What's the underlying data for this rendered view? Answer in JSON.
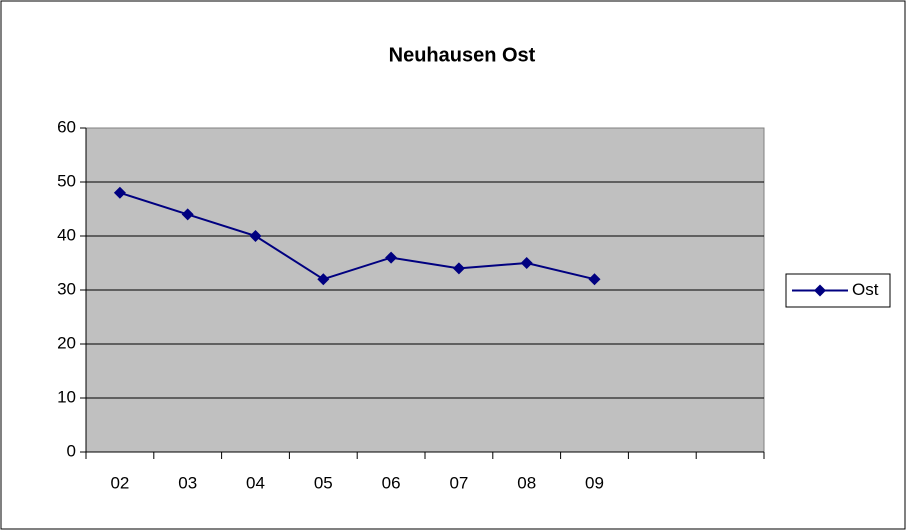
{
  "chart_data": {
    "type": "line",
    "title": "Neuhausen Ost",
    "categories": [
      "02",
      "03",
      "04",
      "05",
      "06",
      "07",
      "08",
      "09",
      null,
      null
    ],
    "series": [
      {
        "name": "Ost",
        "color": "#000080",
        "values": [
          48,
          44,
          40,
          32,
          36,
          34,
          35,
          32,
          null,
          null
        ]
      }
    ],
    "ylim": [
      0,
      60
    ],
    "yticks": [
      0,
      10,
      20,
      30,
      40,
      50,
      60
    ],
    "grid": true,
    "legend": "right"
  }
}
